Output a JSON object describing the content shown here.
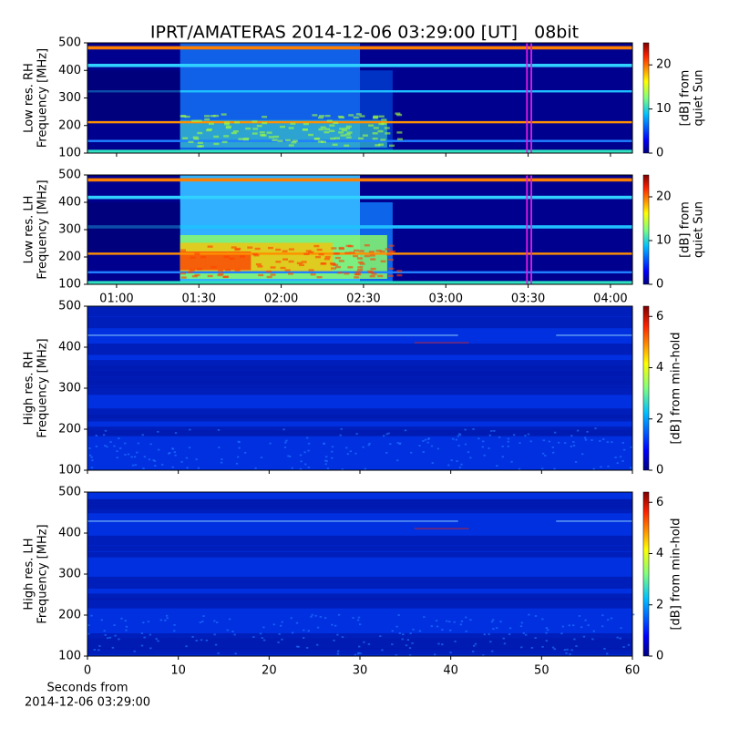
{
  "chart_data": {
    "type": "spectrogram",
    "title": "IPRT/AMATERAS 2014-12-06 03:29:00 [UT]   08bit",
    "time_axis": {
      "xlim": [
        49.4,
        248
      ],
      "xticks": [
        {
          "value": 60,
          "label": "01:00"
        },
        {
          "value": 90,
          "label": "01:30"
        },
        {
          "value": 120,
          "label": "02:00"
        },
        {
          "value": 150,
          "label": "02:30"
        },
        {
          "value": 180,
          "label": "03:00"
        },
        {
          "value": 210,
          "label": "03:30"
        },
        {
          "value": 240,
          "label": "04:00"
        }
      ]
    },
    "seconds_axis": {
      "xlim": [
        0,
        60
      ],
      "xticks": [
        0,
        10,
        20,
        30,
        40,
        50,
        60
      ],
      "xlabel": [
        "Seconds from",
        "2014-12-06 03:29:00"
      ]
    },
    "panels": [
      {
        "ylabel": [
          "Low res. RH",
          "Frequency [MHz]"
        ],
        "ylim": [
          100,
          500
        ],
        "yticks": [
          100,
          200,
          300,
          400,
          500
        ],
        "colorbar": {
          "label": [
            "[dB] from",
            "quiet Sun"
          ],
          "clim": [
            0,
            25
          ],
          "ticks": [
            0,
            10,
            20
          ]
        }
      },
      {
        "ylabel": [
          "Low res. LH",
          "Frequency [MHz]"
        ],
        "ylim": [
          100,
          500
        ],
        "yticks": [
          100,
          200,
          300,
          400,
          500
        ],
        "colorbar": {
          "label": [
            "[dB] from",
            "quiet Sun"
          ],
          "clim": [
            0,
            25
          ],
          "ticks": [
            0,
            10,
            20
          ]
        }
      },
      {
        "ylabel": [
          "High res. RH",
          "Frequency [MHz]"
        ],
        "ylim": [
          100,
          500
        ],
        "yticks": [
          100,
          200,
          300,
          400,
          500
        ],
        "colorbar": {
          "label": [
            "[dB] from min-hold"
          ],
          "clim": [
            0,
            6.4
          ],
          "ticks": [
            0,
            2,
            4,
            6
          ]
        }
      },
      {
        "ylabel": [
          "High res. LH",
          "Frequency [MHz]"
        ],
        "ylim": [
          100,
          500
        ],
        "yticks": [
          100,
          200,
          300,
          400,
          500
        ],
        "colorbar": {
          "label": [
            "[dB] from min-hold"
          ],
          "clim": [
            0,
            6.4
          ],
          "ticks": [
            0,
            2,
            4,
            6
          ]
        }
      }
    ]
  }
}
